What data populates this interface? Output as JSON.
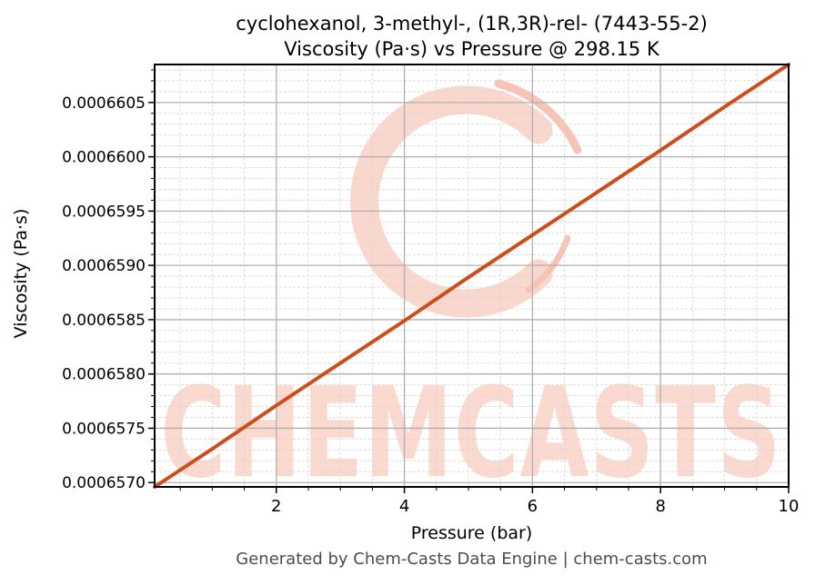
{
  "title": {
    "line1": "cyclohexanol, 3-methyl-, (1R,3R)-rel- (7443-55-2)",
    "line2": "Viscosity (Pa·s) vs Pressure @ 298.15 K"
  },
  "axes": {
    "xlabel": "Pressure (bar)",
    "ylabel": "Viscosity (Pa·s)"
  },
  "footer": {
    "text": "Generated by Chem-Casts Data Engine | chem-casts.com"
  },
  "watermark": {
    "text": "CHEMCASTS",
    "logo": "brush-c-logo",
    "text_color": "#fbd9cf",
    "logo_color": "#fad7cc",
    "logo_accent_color": "#f6c3b4"
  },
  "colors": {
    "line": "#cc4e1b",
    "grid_major": "#b0b0b0",
    "grid_minor": "#d8d8d8",
    "spine": "#000000",
    "tick_label": "#000000",
    "footer_text": "#4d4d4d"
  },
  "chart_data": {
    "type": "line",
    "title": "cyclohexanol, 3-methyl-, (1R,3R)-rel- (7443-55-2)\nViscosity (Pa·s) vs Pressure @ 298.15 K",
    "xlabel": "Pressure (bar)",
    "ylabel": "Viscosity (Pa·s)",
    "xlim": [
      0.1,
      10
    ],
    "ylim": [
      0.00065696,
      0.00066085
    ],
    "x_ticks": [
      2,
      4,
      6,
      8,
      10
    ],
    "x_tick_labels": [
      "2",
      "4",
      "6",
      "8",
      "10"
    ],
    "y_ticks": [
      0.000657,
      0.0006575,
      0.000658,
      0.0006585,
      0.000659,
      0.0006595,
      0.00066,
      0.0006605
    ],
    "y_tick_labels": [
      "0.0006570",
      "0.0006575",
      "0.0006580",
      "0.0006585",
      "0.0006590",
      "0.0006595",
      "0.0006600",
      "0.0006605"
    ],
    "x_minor_step": 0.5,
    "y_minor_step": 1e-07,
    "grid": {
      "major": true,
      "minor": true
    },
    "legend": "none",
    "line_width": 4,
    "series": [
      {
        "name": "viscosity",
        "x": [
          0.1,
          1,
          2,
          3,
          4,
          5,
          6,
          7,
          8,
          9,
          10
        ],
        "y": [
          0.00065696,
          0.00065731,
          0.00065771,
          0.0006581,
          0.00065849,
          0.00065889,
          0.00065928,
          0.00065967,
          0.00066006,
          0.00066046,
          0.00066085
        ]
      }
    ]
  }
}
